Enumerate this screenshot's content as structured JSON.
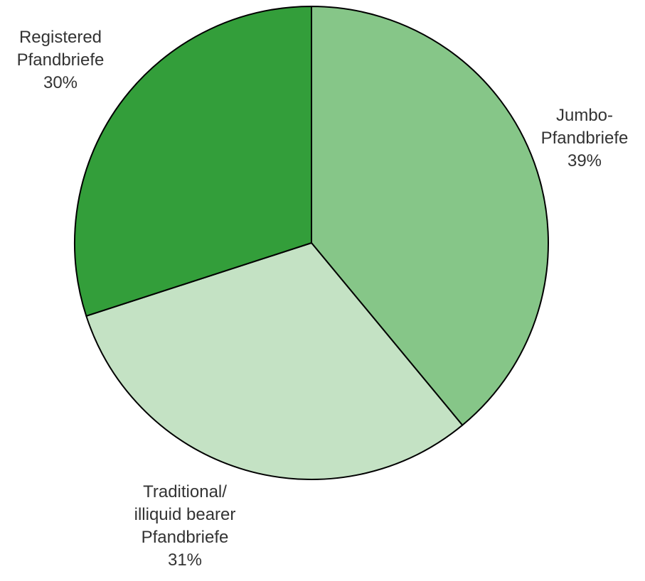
{
  "chart_data": {
    "type": "pie",
    "start": "top",
    "direction": "clockwise",
    "slices": [
      {
        "label_lines": [
          "Jumbo-",
          "Pfandbriefe"
        ],
        "value_label": "39%",
        "value": 39,
        "color": "#86c688"
      },
      {
        "label_lines": [
          "Traditional/",
          "illiquid bearer",
          "Pfandbriefe"
        ],
        "value_label": "31%",
        "value": 31,
        "color": "#c4e2c4"
      },
      {
        "label_lines": [
          "Registered",
          "Pfandbriefe"
        ],
        "value_label": "30%",
        "value": 30,
        "color": "#339e3a"
      }
    ]
  }
}
